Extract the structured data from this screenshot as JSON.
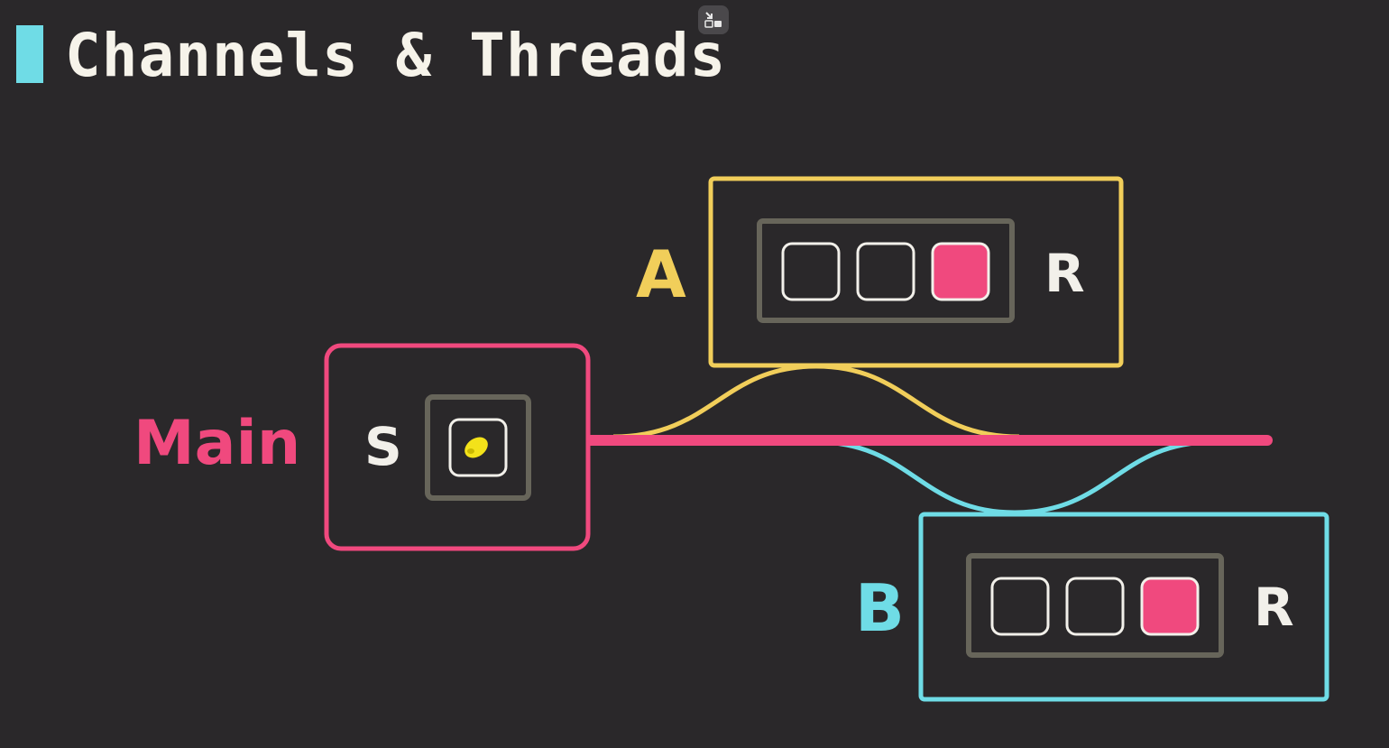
{
  "title": "Channels & Threads",
  "title_accent_color": "#6fdce6",
  "controls": {
    "exit_icon": "exit-fullscreen-icon"
  },
  "diagram": {
    "main": {
      "label": "Main",
      "color": "#f0497e",
      "sender_label": "S",
      "sender_slot_icon": "lemon-icon"
    },
    "thread_a": {
      "label": "A",
      "color": "#f1ce5a",
      "receiver_label": "R",
      "slots": [
        "empty",
        "empty",
        "filled"
      ]
    },
    "thread_b": {
      "label": "B",
      "color": "#6fdce6",
      "receiver_label": "R",
      "slots": [
        "empty",
        "empty",
        "filled"
      ]
    },
    "slot_fill_color": "#f0497e",
    "queue_frame_color": "#67655a"
  }
}
